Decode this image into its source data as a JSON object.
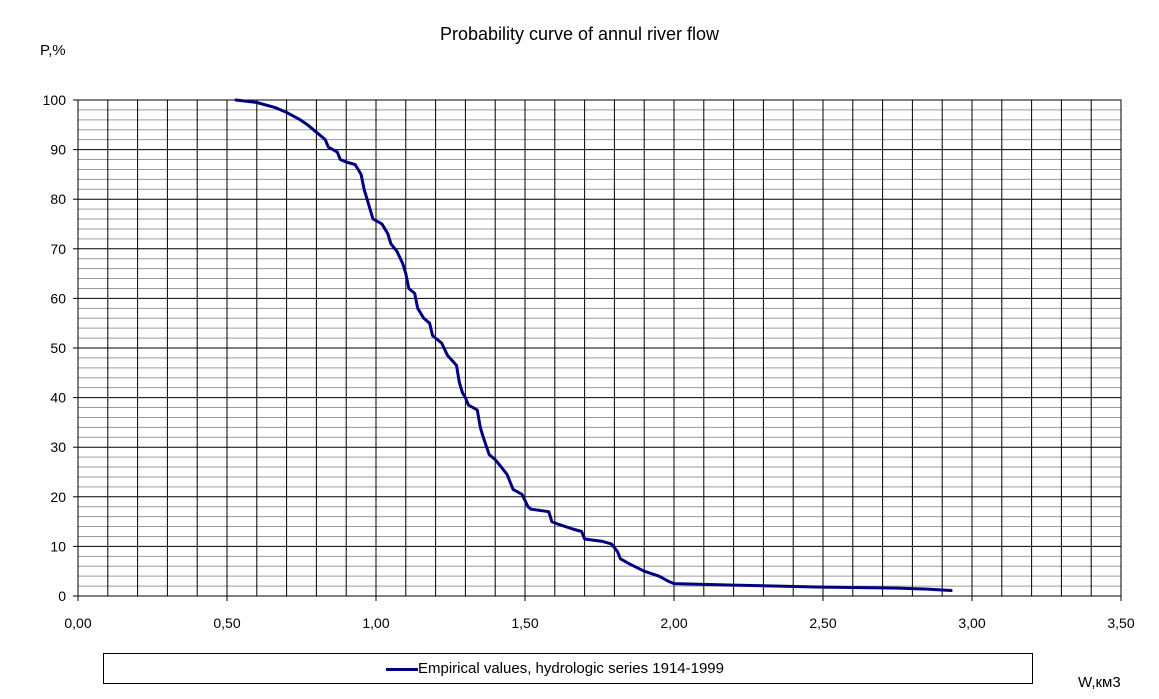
{
  "chart_data": {
    "type": "line",
    "title": "Probability curve of annul river flow",
    "xlabel": "W,км3",
    "ylabel": "P,%",
    "xlim": [
      0,
      3.5
    ],
    "ylim": [
      0,
      100
    ],
    "x_ticks": [
      "0,00",
      "0,50",
      "1,00",
      "1,50",
      "2,00",
      "2,50",
      "3,00",
      "3,50"
    ],
    "y_ticks": [
      "0",
      "10",
      "20",
      "30",
      "40",
      "50",
      "60",
      "70",
      "80",
      "90",
      "100"
    ],
    "grid": true,
    "legend_position": "bottom",
    "series": [
      {
        "name": "Empirical values, hydrologic series 1914-1999",
        "color": "#000080",
        "x": [
          0.53,
          0.6,
          0.66,
          0.7,
          0.74,
          0.77,
          0.8,
          0.83,
          0.84,
          0.87,
          0.88,
          0.9,
          0.93,
          0.95,
          0.96,
          0.97,
          0.98,
          0.99,
          1.02,
          1.04,
          1.05,
          1.07,
          1.09,
          1.1,
          1.11,
          1.13,
          1.14,
          1.16,
          1.18,
          1.19,
          1.2,
          1.22,
          1.24,
          1.27,
          1.28,
          1.29,
          1.3,
          1.31,
          1.34,
          1.35,
          1.36,
          1.38,
          1.4,
          1.42,
          1.44,
          1.46,
          1.49,
          1.51,
          1.52,
          1.58,
          1.59,
          1.61,
          1.66,
          1.69,
          1.7,
          1.76,
          1.79,
          1.81,
          1.82,
          1.85,
          1.9,
          1.95,
          1.98,
          2.0,
          2.2,
          2.5,
          2.75,
          2.85,
          2.93
        ],
        "y": [
          100,
          99.5,
          98.5,
          97.5,
          96.2,
          95,
          93.5,
          92,
          90.5,
          89.5,
          88,
          87.5,
          87,
          85,
          82,
          80,
          78,
          76,
          75,
          73,
          71,
          69.5,
          67,
          65,
          62,
          61,
          58,
          56,
          55,
          52.5,
          52,
          51,
          48.5,
          46.5,
          43,
          41,
          40,
          38.5,
          37.5,
          34,
          32,
          28.5,
          27.5,
          26,
          24.5,
          21.5,
          20.5,
          18,
          17.5,
          17,
          15,
          14.5,
          13.5,
          13,
          11.5,
          11,
          10.5,
          9,
          7.5,
          6.5,
          5,
          4,
          3,
          2.5,
          2.2,
          1.8,
          1.6,
          1.4,
          1.1
        ]
      }
    ]
  }
}
